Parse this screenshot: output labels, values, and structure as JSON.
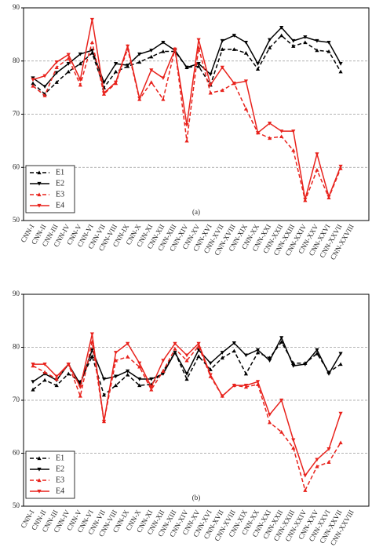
{
  "chart_data": [
    {
      "type": "line",
      "caption": "(a)",
      "categories": [
        "CNN-I",
        "CNN-II",
        "CNN-III",
        "CNN-IV",
        "CNN-V",
        "CNN-VI",
        "CNN-VII",
        "CNN-VIII",
        "CNN-IX",
        "CNN-X",
        "CNN-XI",
        "CNN-XII",
        "CNN-XIII",
        "CNN-XIV",
        "CNN-XV",
        "CNN-XVI",
        "CNN-XVII",
        "CNN-XVIII",
        "CNN-XIX",
        "CNN-XX",
        "CNN-XXI",
        "CNN-XXII",
        "CNN-XXIII",
        "CNN-XXIV",
        "CNN-XXV",
        "CNN-XXVI",
        "CNN-XXVII",
        "CNN-XXVIII"
      ],
      "series": [
        {
          "name": "E1",
          "color": "#000000",
          "dashed": true,
          "marker": "up",
          "values": [
            75.8,
            73.8,
            76,
            78,
            79.5,
            81.5,
            75,
            78,
            79,
            79.8,
            80.8,
            81.8,
            81.8,
            78.8,
            79,
            75.5,
            82.2,
            82.2,
            81.5,
            78.5,
            82.5,
            84.8,
            82.8,
            83.5,
            82,
            81.8,
            78,
            null
          ]
        },
        {
          "name": "E2",
          "color": "#000000",
          "dashed": false,
          "marker": "down",
          "values": [
            76.8,
            75.2,
            77.8,
            79.5,
            81.3,
            82,
            76,
            79.5,
            79.2,
            81.3,
            82,
            83.5,
            82,
            78.8,
            79.5,
            77.5,
            83.8,
            84.8,
            83.5,
            79.5,
            84,
            86.3,
            83.8,
            84.5,
            83.8,
            83.5,
            79.5,
            null
          ]
        },
        {
          "name": "E3",
          "color": "#e8221c",
          "dashed": true,
          "marker": "up",
          "values": [
            75.3,
            73.5,
            78.8,
            80.5,
            75.5,
            83.5,
            73.8,
            75.8,
            82.3,
            72.8,
            76,
            72.8,
            82.3,
            65,
            82.5,
            74,
            74.5,
            75.8,
            71,
            66.5,
            65.5,
            65.8,
            63.2,
            53.8,
            59.5,
            54.3,
            59.8,
            null
          ]
        },
        {
          "name": "E4",
          "color": "#e8221c",
          "dashed": false,
          "marker": "down",
          "values": [
            76.5,
            77.2,
            79.8,
            81.2,
            76.5,
            87.8,
            74,
            76,
            82.8,
            73,
            78.3,
            76.8,
            82.2,
            68,
            84,
            75.5,
            78.8,
            75.8,
            76.2,
            66.5,
            68.3,
            66.8,
            66.8,
            54,
            62.5,
            54.5,
            60.2,
            null
          ]
        }
      ],
      "ylim": [
        50,
        90
      ],
      "yticks": [
        50,
        60,
        70,
        80,
        90
      ],
      "grid": true,
      "legend": "lower left"
    },
    {
      "type": "line",
      "caption": "(b)",
      "categories": [
        "CNN-I",
        "CNN-II",
        "CNN-III",
        "CNN-IV",
        "CNN-V",
        "CNN-VI",
        "CNN-VII",
        "CNN-VIII",
        "CNN-IX",
        "CNN-X",
        "CNN-XI",
        "CNN-XII",
        "CNN-XIII",
        "CNN-XIV",
        "CNN-XV",
        "CNN-XVI",
        "CNN-XVII",
        "CNN-XVIII",
        "CNN-XIX",
        "CNN-XX",
        "CNN-XXI",
        "CNN-XXII",
        "CNN-XXIII",
        "CNN-XXIV",
        "CNN-XXV",
        "CNN-XXVI",
        "CNN-XXVII",
        "CNN-XXVIII"
      ],
      "series": [
        {
          "name": "E1",
          "color": "#000000",
          "dashed": true,
          "marker": "up",
          "values": [
            72,
            73.8,
            72.8,
            75,
            73.5,
            78.3,
            71,
            72.8,
            74.8,
            72.8,
            73,
            75.5,
            79,
            74,
            78.3,
            75.8,
            78,
            79.3,
            75,
            79,
            78,
            81,
            77,
            77,
            78.8,
            75.3,
            76.8,
            null
          ]
        },
        {
          "name": "E2",
          "color": "#000000",
          "dashed": false,
          "marker": "down",
          "values": [
            73.5,
            75,
            73.8,
            76.8,
            73,
            79.5,
            74,
            74.5,
            75.5,
            74,
            74,
            75,
            79,
            75,
            79.5,
            77,
            79,
            80.8,
            78.5,
            79.5,
            77.5,
            81.8,
            76.5,
            76.8,
            79.5,
            75,
            78.8,
            null
          ]
        },
        {
          "name": "E3",
          "color": "#e8221c",
          "dashed": true,
          "marker": "up",
          "values": [
            76.5,
            75.3,
            74,
            76.8,
            70.8,
            81,
            66,
            77.5,
            78.2,
            76.3,
            72,
            75.5,
            79.7,
            77.5,
            80.2,
            74.5,
            70.8,
            72.8,
            72.5,
            73,
            65.8,
            64,
            61,
            53,
            57.5,
            58.3,
            62,
            null
          ]
        },
        {
          "name": "E4",
          "color": "#e8221c",
          "dashed": false,
          "marker": "down",
          "values": [
            76.8,
            76.8,
            74.5,
            76.8,
            72.5,
            82.5,
            66,
            79,
            80.7,
            77,
            72.5,
            77.5,
            80.7,
            78.5,
            80.7,
            74.8,
            70.8,
            72.8,
            72.8,
            73.5,
            67.3,
            70,
            62.5,
            55.8,
            58.8,
            60.8,
            67.5,
            null
          ]
        }
      ],
      "ylim": [
        50,
        90
      ],
      "yticks": [
        50,
        60,
        70,
        80,
        90
      ],
      "grid": true,
      "legend": "lower left"
    }
  ]
}
